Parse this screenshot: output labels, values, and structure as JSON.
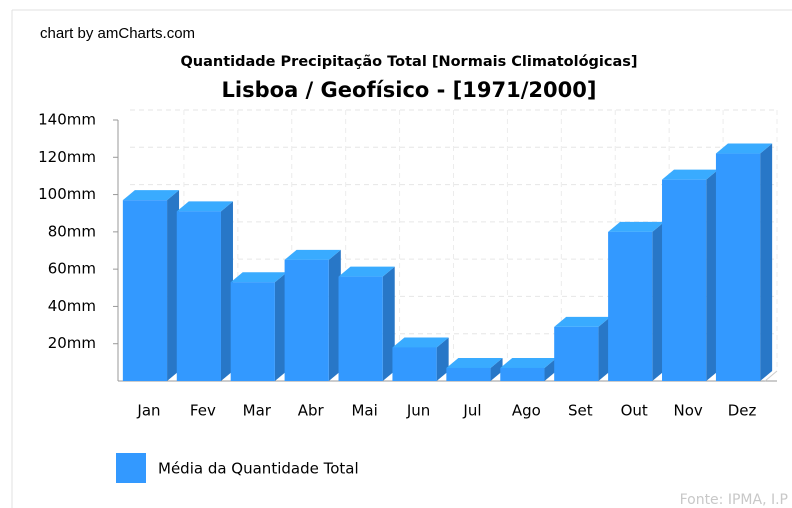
{
  "chart_data": {
    "type": "bar3d",
    "credit": "chart by amCharts.com",
    "title": "Quantidade Precipitação Total [Normais Climatológicas]",
    "subtitle": "Lisboa / Geofísico - [1971/2000]",
    "categories": [
      "Jan",
      "Fev",
      "Mar",
      "Abr",
      "Mai",
      "Jun",
      "Jul",
      "Ago",
      "Set",
      "Out",
      "Nov",
      "Dez"
    ],
    "series": [
      {
        "name": "Média da Quantidade Total",
        "color": "#3399ff",
        "values": [
          97,
          91,
          53,
          65,
          56,
          18,
          7,
          7,
          29,
          80,
          108,
          122
        ]
      }
    ],
    "ylim": [
      0,
      140
    ],
    "yticks": [
      {
        "value": 20,
        "label": "20mm"
      },
      {
        "value": 40,
        "label": "40mm"
      },
      {
        "value": 60,
        "label": "60mm"
      },
      {
        "value": 80,
        "label": "80mm"
      },
      {
        "value": 100,
        "label": "100mm"
      },
      {
        "value": 120,
        "label": "120mm"
      },
      {
        "value": 140,
        "label": "140mm"
      }
    ],
    "grid": true,
    "legend": "bottom-left",
    "source": "Fonte: IPMA, I.P"
  }
}
